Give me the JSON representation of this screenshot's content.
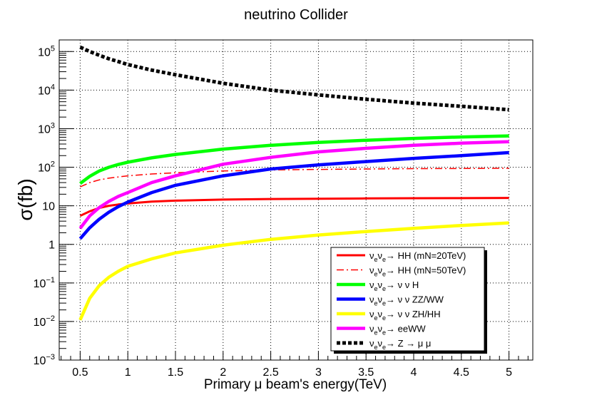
{
  "chart_data": {
    "type": "line",
    "title": "neutrino Collider",
    "xlabel": "Primary μ beam's energy(TeV)",
    "ylabel": "σ(fb)",
    "xlim": [
      0.28,
      5.25
    ],
    "ylim": [
      0.001,
      200000
    ],
    "yscale": "log",
    "grid": true,
    "legend_position": "bottom-right",
    "x_ticks": [
      0.5,
      1,
      1.5,
      2,
      2.5,
      3,
      3.5,
      4,
      4.5,
      5
    ],
    "x_tick_labels": [
      "0.5",
      "1",
      "1.5",
      "2",
      "2.5",
      "3",
      "3.5",
      "4",
      "4.5",
      "5"
    ],
    "y_ticks": [
      0.001,
      0.01,
      0.1,
      1,
      10,
      100,
      1000,
      10000,
      100000
    ],
    "y_tick_labels": [
      {
        "base": "10",
        "exp": "−3"
      },
      {
        "base": "10",
        "exp": "−2"
      },
      {
        "base": "10",
        "exp": "−1"
      },
      {
        "base": "1",
        "exp": ""
      },
      {
        "base": "10",
        "exp": ""
      },
      {
        "base": "10",
        "exp": "2"
      },
      {
        "base": "10",
        "exp": "3"
      },
      {
        "base": "10",
        "exp": "4"
      },
      {
        "base": "10",
        "exp": "5"
      }
    ],
    "series": [
      {
        "name": "νeνe→ HH (mN=20TeV)",
        "legend_main": "ν",
        "legend_sub": "e",
        "legend_rest": "ν",
        "legend_sub2": "e",
        "legend_tail": "→ HH (mN=20TeV)",
        "color": "#ff0000",
        "style": "solid",
        "width": 3,
        "x": [
          0.5,
          0.6,
          0.7,
          0.8,
          0.9,
          1.0,
          1.25,
          1.5,
          2.0,
          2.5,
          3.0,
          3.5,
          4.0,
          4.5,
          5.0
        ],
        "y": [
          5.5,
          7.2,
          8.8,
          10.0,
          10.8,
          11.5,
          12.8,
          13.6,
          14.5,
          15.0,
          15.3,
          15.5,
          15.7,
          15.8,
          16.0
        ]
      },
      {
        "name": "νeνe→ HH (mN=50TeV)",
        "legend_main": "ν",
        "legend_sub": "e",
        "legend_rest": "ν",
        "legend_sub2": "e",
        "legend_tail": "→ HH (mN=50TeV)",
        "color": "#ff0000",
        "style": "dashdot",
        "width": 1.5,
        "x": [
          0.5,
          0.6,
          0.7,
          0.8,
          0.9,
          1.0,
          1.25,
          1.5,
          2.0,
          2.5,
          3.0,
          3.5,
          4.0,
          4.5,
          5.0
        ],
        "y": [
          31,
          40,
          47,
          52,
          56,
          60,
          67,
          72,
          80,
          85,
          88,
          90,
          92,
          93,
          94
        ]
      },
      {
        "name": "νeνe→ νeνe H",
        "legend_main": "ν",
        "legend_sub": "e",
        "legend_rest": "ν",
        "legend_sub2": "e",
        "legend_tail": "→ ν ν  H",
        "color": "#00ff00",
        "style": "solid",
        "width": 4.5,
        "x": [
          0.5,
          0.6,
          0.7,
          0.8,
          0.9,
          1.0,
          1.25,
          1.5,
          2.0,
          2.5,
          3.0,
          3.5,
          4.0,
          4.5,
          5.0
        ],
        "y": [
          38,
          58,
          80,
          100,
          118,
          135,
          175,
          215,
          295,
          370,
          440,
          500,
          560,
          610,
          650
        ]
      },
      {
        "name": "νeνe→ νeνe ZZ/WW",
        "legend_main": "ν",
        "legend_sub": "e",
        "legend_rest": "ν",
        "legend_sub2": "e",
        "legend_tail": "→ ν ν  ZZ/WW",
        "color": "#0000ff",
        "style": "solid",
        "width": 4.5,
        "x": [
          0.5,
          0.6,
          0.7,
          0.8,
          0.9,
          1.0,
          1.25,
          1.5,
          2.0,
          2.5,
          3.0,
          3.5,
          4.0,
          4.5,
          5.0
        ],
        "y": [
          1.4,
          2.7,
          4.5,
          6.8,
          9.5,
          12.5,
          22,
          34,
          60,
          90,
          115,
          140,
          170,
          200,
          240
        ]
      },
      {
        "name": "νeνe→ νeνe ZH/HH",
        "legend_main": "ν",
        "legend_sub": "e",
        "legend_rest": "ν",
        "legend_sub2": "e",
        "legend_tail": "→ ν ν  ZH/HH",
        "color": "#ffff00",
        "style": "solid",
        "width": 4.5,
        "x": [
          0.5,
          0.6,
          0.7,
          0.8,
          0.9,
          1.0,
          1.25,
          1.5,
          2.0,
          2.5,
          3.0,
          3.5,
          4.0,
          4.5,
          5.0
        ],
        "y": [
          0.011,
          0.04,
          0.085,
          0.14,
          0.2,
          0.27,
          0.42,
          0.6,
          0.95,
          1.35,
          1.75,
          2.15,
          2.6,
          3.1,
          3.6
        ]
      },
      {
        "name": "νeνe→ eeWW",
        "legend_main": "ν",
        "legend_sub": "e",
        "legend_rest": "ν",
        "legend_sub2": "e",
        "legend_tail": "→ eeWW",
        "color": "#ff00ff",
        "style": "solid",
        "width": 4.5,
        "x": [
          0.5,
          0.6,
          0.7,
          0.8,
          0.9,
          1.0,
          1.25,
          1.5,
          2.0,
          2.5,
          3.0,
          3.5,
          4.0,
          4.5,
          5.0
        ],
        "y": [
          2.6,
          5.5,
          9.0,
          13,
          17.5,
          22,
          40,
          60,
          120,
          180,
          250,
          310,
          370,
          420,
          460
        ]
      },
      {
        "name": "νeνe→ Z → μ+μ−",
        "legend_main": "ν",
        "legend_sub": "e",
        "legend_rest": "ν",
        "legend_sub2": "e",
        "legend_tail": "→ Z → μ μ",
        "color": "#000000",
        "style": "dotted",
        "width": 5,
        "x": [
          0.5,
          0.6,
          0.7,
          0.8,
          0.9,
          1.0,
          1.25,
          1.5,
          2.0,
          2.5,
          3.0,
          3.5,
          4.0,
          4.5,
          5.0
        ],
        "y": [
          130000,
          100000,
          80000,
          65000,
          55000,
          46000,
          33000,
          25000,
          15000,
          10000,
          7500,
          5800,
          4600,
          3800,
          3100
        ]
      }
    ]
  }
}
